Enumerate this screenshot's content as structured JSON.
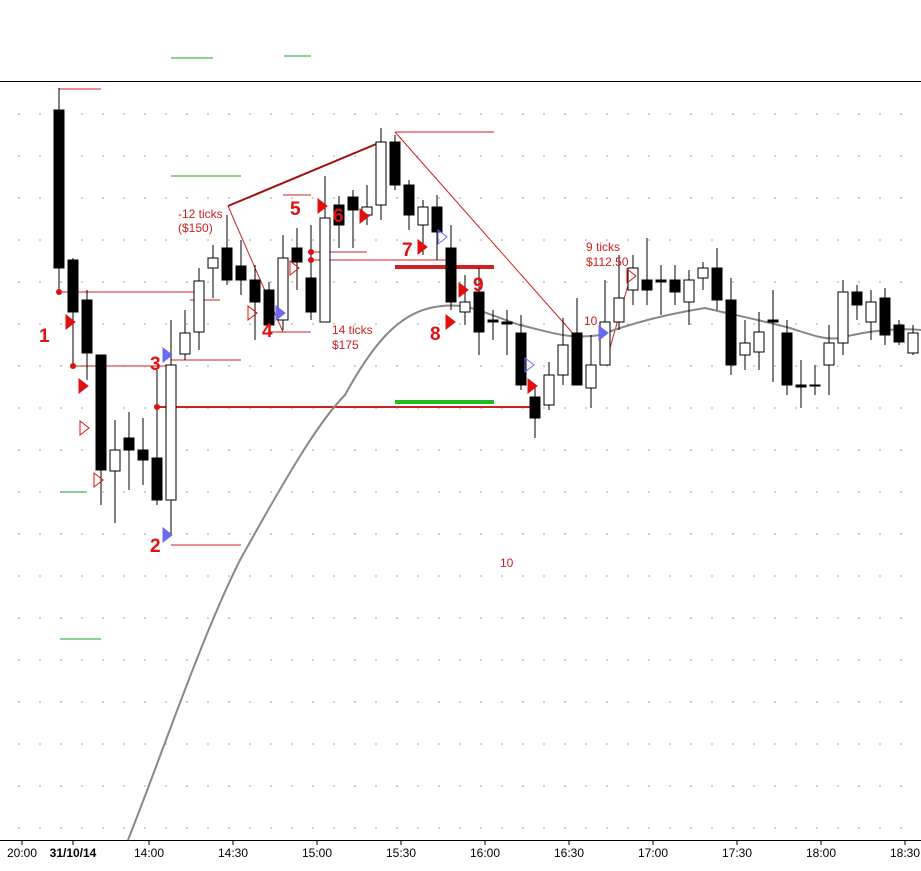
{
  "annotations": {
    "markers": [
      "1",
      "2",
      "3",
      "4",
      "5",
      "6",
      "7",
      "8",
      "9",
      "10"
    ],
    "notes": [
      "-12 ticks",
      "($150)",
      "14 ticks",
      "$175",
      "9 ticks",
      "$112.50",
      "10"
    ]
  },
  "x_axis": {
    "labels": [
      "20:00",
      "31/10/14",
      "14:00",
      "14:30",
      "15:00",
      "15:30",
      "16:00",
      "16:30",
      "17:00",
      "17:30",
      "18:00",
      "18:30"
    ]
  }
}
